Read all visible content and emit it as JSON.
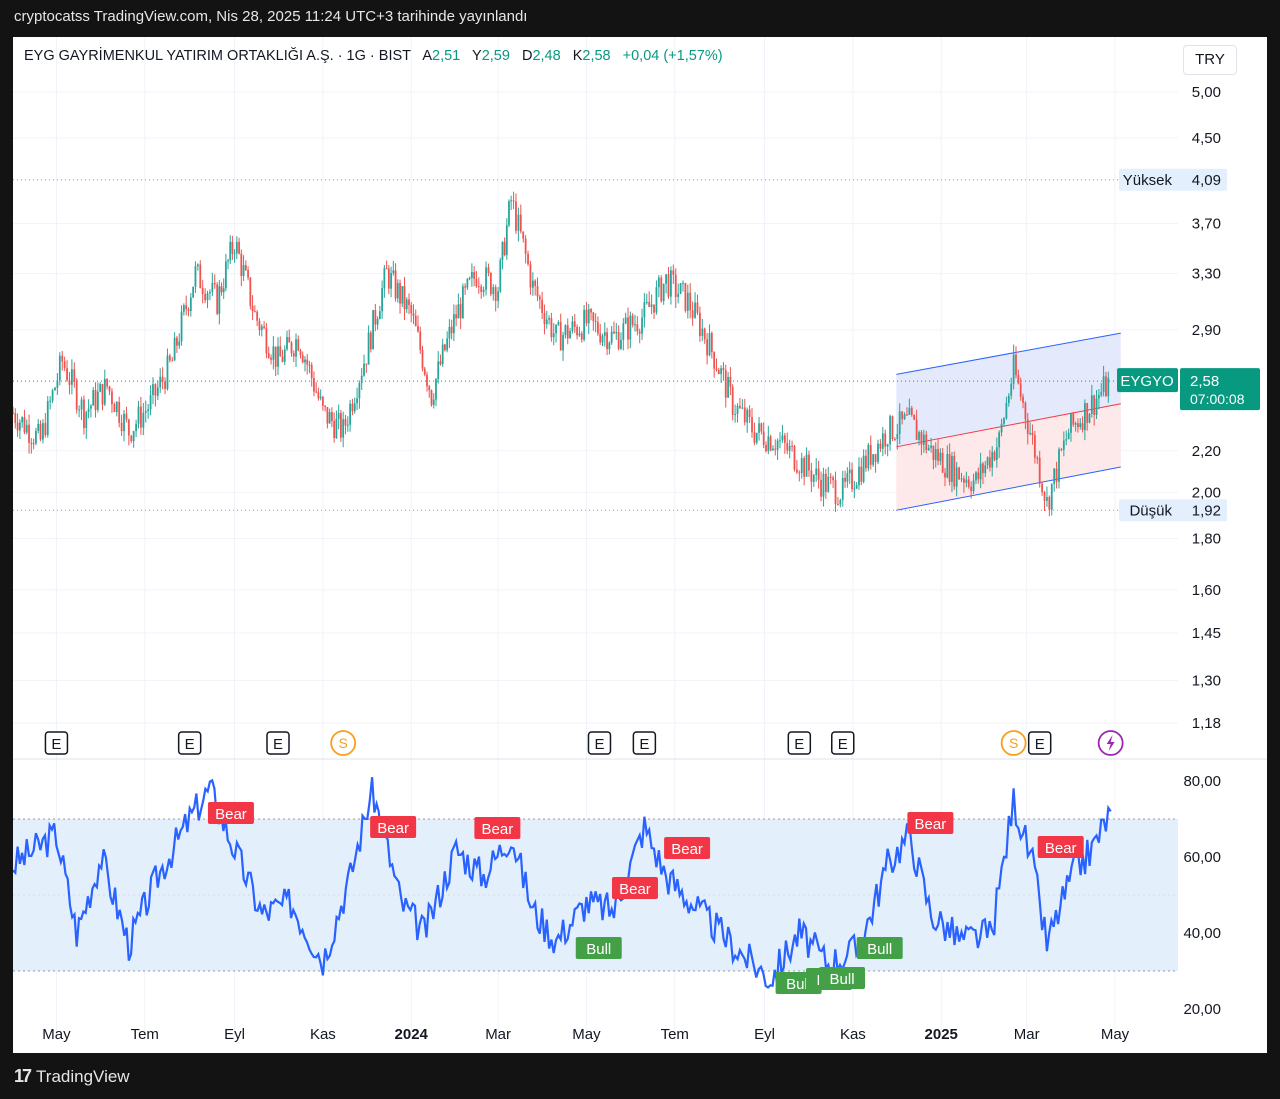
{
  "caption": "cryptocatss TradingView.com, Nis 28, 2025 11:24 UTC+3 tarihinde yayınlandı",
  "header": {
    "symbol_name": "EYG GAYRİMENKUL YATIRIM ORTAKLIĞI A.Ş. · 1G · BIST",
    "open_label": "A",
    "open_value": "2,51",
    "high_label": "Y",
    "high_value": "2,59",
    "low_label": "D",
    "low_value": "2,48",
    "close_label": "K",
    "close_value": "2,58",
    "change": "+0,04 (+1,57%)"
  },
  "currency": "TRY",
  "footer": {
    "brand": "TradingView",
    "mark": "17"
  },
  "colors": {
    "up": "#089981",
    "down": "#f23645",
    "rsi_line": "#2962ff",
    "rsi_band": "#e3f0fc",
    "channel_upper": "#dfe5fb",
    "channel_lower": "#fde4e6",
    "bear_label": "#f23645",
    "bull_label": "#43a047"
  },
  "chart_data": [
    {
      "type": "candlestick",
      "scale": "log",
      "y_ticks": [
        "5,00",
        "4,50",
        "3,70",
        "3,30",
        "2,90",
        "2,20",
        "2,00",
        "1,80",
        "1,60",
        "1,45",
        "1,30",
        "1,18"
      ],
      "y_tick_values": [
        5.0,
        4.5,
        3.7,
        3.3,
        2.9,
        2.2,
        2.0,
        1.8,
        1.6,
        1.45,
        1.3,
        1.18
      ],
      "x_ticks": [
        "May",
        "Tem",
        "Eyl",
        "Kas",
        "2024",
        "Mar",
        "May",
        "Tem",
        "Eyl",
        "Kas",
        "2025",
        "Mar",
        "May"
      ],
      "x_tick_dates": [
        "2023-05",
        "2023-07",
        "2023-09",
        "2023-11",
        "2024-01",
        "2024-03",
        "2024-05",
        "2024-07",
        "2024-09",
        "2024-11",
        "2025-01",
        "2025-03",
        "2025-05"
      ],
      "close_series": [
        {
          "date": "2023-04",
          "close": 2.4
        },
        {
          "date": "2023-04-20",
          "close": 2.25
        },
        {
          "date": "2023-05-05",
          "close": 2.7
        },
        {
          "date": "2023-05-20",
          "close": 2.4
        },
        {
          "date": "2023-06-05",
          "close": 2.55
        },
        {
          "date": "2023-06-20",
          "close": 2.3
        },
        {
          "date": "2023-07-05",
          "close": 2.45
        },
        {
          "date": "2023-07-20",
          "close": 2.7
        },
        {
          "date": "2023-08-05",
          "close": 3.3
        },
        {
          "date": "2023-08-20",
          "close": 3.1
        },
        {
          "date": "2023-09-01",
          "close": 3.55
        },
        {
          "date": "2023-09-15",
          "close": 3.0
        },
        {
          "date": "2023-10-01",
          "close": 2.7
        },
        {
          "date": "2023-10-15",
          "close": 2.85
        },
        {
          "date": "2023-11-01",
          "close": 2.4
        },
        {
          "date": "2023-11-15",
          "close": 2.3
        },
        {
          "date": "2023-12-01",
          "close": 2.75
        },
        {
          "date": "2023-12-15",
          "close": 3.3
        },
        {
          "date": "2024-01-01",
          "close": 3.0
        },
        {
          "date": "2024-01-15",
          "close": 2.5
        },
        {
          "date": "2024-02-01",
          "close": 3.0
        },
        {
          "date": "2024-02-15",
          "close": 3.3
        },
        {
          "date": "2024-03-01",
          "close": 3.2
        },
        {
          "date": "2024-03-10",
          "close": 3.9
        },
        {
          "date": "2024-03-25",
          "close": 3.2
        },
        {
          "date": "2024-04-10",
          "close": 2.85
        },
        {
          "date": "2024-05-01",
          "close": 2.95
        },
        {
          "date": "2024-05-20",
          "close": 2.85
        },
        {
          "date": "2024-06-10",
          "close": 3.0
        },
        {
          "date": "2024-06-25",
          "close": 3.25
        },
        {
          "date": "2024-07-10",
          "close": 3.1
        },
        {
          "date": "2024-07-25",
          "close": 2.8
        },
        {
          "date": "2024-08-10",
          "close": 2.45
        },
        {
          "date": "2024-08-25",
          "close": 2.3
        },
        {
          "date": "2024-09-10",
          "close": 2.25
        },
        {
          "date": "2024-09-25",
          "close": 2.15
        },
        {
          "date": "2024-10-10",
          "close": 2.05
        },
        {
          "date": "2024-10-25",
          "close": 2.0
        },
        {
          "date": "2024-11-10",
          "close": 2.15
        },
        {
          "date": "2024-11-25",
          "close": 2.3
        },
        {
          "date": "2024-12-10",
          "close": 2.35
        },
        {
          "date": "2024-12-25",
          "close": 2.2
        },
        {
          "date": "2025-01-10",
          "close": 2.1
        },
        {
          "date": "2025-01-25",
          "close": 2.05
        },
        {
          "date": "2025-02-10",
          "close": 2.25
        },
        {
          "date": "2025-02-20",
          "close": 2.65
        },
        {
          "date": "2025-03-05",
          "close": 2.25
        },
        {
          "date": "2025-03-15",
          "close": 1.95
        },
        {
          "date": "2025-03-30",
          "close": 2.3
        },
        {
          "date": "2025-04-15",
          "close": 2.45
        },
        {
          "date": "2025-04-28",
          "close": 2.58
        }
      ],
      "high_marker": {
        "label": "Yüksek",
        "value": "4,09"
      },
      "low_marker": {
        "label": "Düşük",
        "value": "1,92"
      },
      "last_price": {
        "ticker": "EYGYO",
        "value": "2,58",
        "countdown": "07:00:08"
      },
      "channel": {
        "start": "2024-12-01",
        "end": "2025-05-05",
        "upper": [
          2.62,
          2.88
        ],
        "mid": [
          2.22,
          2.45
        ],
        "lower": [
          1.92,
          2.12
        ]
      },
      "events": [
        {
          "date": "2023-05",
          "kind": "E"
        },
        {
          "date": "2023-08",
          "kind": "E"
        },
        {
          "date": "2023-10",
          "kind": "E"
        },
        {
          "date": "2023-11-15",
          "kind": "S"
        },
        {
          "date": "2024-05-10",
          "kind": "E"
        },
        {
          "date": "2024-06-10",
          "kind": "E"
        },
        {
          "date": "2024-09-25",
          "kind": "E"
        },
        {
          "date": "2024-10-25",
          "kind": "E"
        },
        {
          "date": "2025-02-20",
          "kind": "S"
        },
        {
          "date": "2025-03-10",
          "kind": "E"
        },
        {
          "date": "2025-04-28",
          "kind": "bolt"
        }
      ]
    },
    {
      "type": "line",
      "y_ticks": [
        "80,00",
        "60,00",
        "40,00",
        "20,00"
      ],
      "y_tick_values": [
        80,
        60,
        40,
        20
      ],
      "band": [
        30,
        70
      ],
      "rsi": [
        {
          "date": "2023-04",
          "v": 58
        },
        {
          "date": "2023-05-01",
          "v": 66
        },
        {
          "date": "2023-05-15",
          "v": 40
        },
        {
          "date": "2023-06-01",
          "v": 60
        },
        {
          "date": "2023-06-20",
          "v": 37
        },
        {
          "date": "2023-07-10",
          "v": 55
        },
        {
          "date": "2023-08-01",
          "v": 70
        },
        {
          "date": "2023-08-15",
          "v": 78
        },
        {
          "date": "2023-09-01",
          "v": 62
        },
        {
          "date": "2023-09-20",
          "v": 45
        },
        {
          "date": "2023-10-10",
          "v": 48
        },
        {
          "date": "2023-11-01",
          "v": 33
        },
        {
          "date": "2023-11-20",
          "v": 55
        },
        {
          "date": "2023-12-05",
          "v": 78
        },
        {
          "date": "2023-12-25",
          "v": 48
        },
        {
          "date": "2024-01-10",
          "v": 40
        },
        {
          "date": "2024-02-01",
          "v": 62
        },
        {
          "date": "2024-02-20",
          "v": 55
        },
        {
          "date": "2024-03-10",
          "v": 66
        },
        {
          "date": "2024-03-25",
          "v": 46
        },
        {
          "date": "2024-04-10",
          "v": 38
        },
        {
          "date": "2024-05-01",
          "v": 48
        },
        {
          "date": "2024-05-20",
          "v": 46
        },
        {
          "date": "2024-06-10",
          "v": 68
        },
        {
          "date": "2024-06-25",
          "v": 55
        },
        {
          "date": "2024-07-20",
          "v": 45
        },
        {
          "date": "2024-08-15",
          "v": 35
        },
        {
          "date": "2024-09-05",
          "v": 28
        },
        {
          "date": "2024-09-25",
          "v": 40
        },
        {
          "date": "2024-10-15",
          "v": 32
        },
        {
          "date": "2024-11-05",
          "v": 36
        },
        {
          "date": "2024-11-25",
          "v": 58
        },
        {
          "date": "2024-12-10",
          "v": 66
        },
        {
          "date": "2024-12-25",
          "v": 45
        },
        {
          "date": "2025-01-15",
          "v": 38
        },
        {
          "date": "2025-02-05",
          "v": 40
        },
        {
          "date": "2025-02-20",
          "v": 75
        },
        {
          "date": "2025-03-05",
          "v": 58
        },
        {
          "date": "2025-03-15",
          "v": 37
        },
        {
          "date": "2025-04-01",
          "v": 55
        },
        {
          "date": "2025-04-15",
          "v": 62
        },
        {
          "date": "2025-04-28",
          "v": 72
        }
      ],
      "signals": [
        {
          "date": "2023-08-15",
          "label": "Bear",
          "kind": "bear"
        },
        {
          "date": "2023-12-05",
          "label": "Bear",
          "kind": "bear"
        },
        {
          "date": "2024-02-15",
          "label": "Bear",
          "kind": "bear"
        },
        {
          "date": "2024-05-20",
          "label": "Bear",
          "kind": "bear"
        },
        {
          "date": "2024-06-25",
          "label": "Bear",
          "kind": "bear"
        },
        {
          "date": "2024-04-25",
          "label": "Bull",
          "kind": "bull"
        },
        {
          "date": "2024-09-10",
          "label": "Bull",
          "kind": "bull"
        },
        {
          "date": "2024-10-01",
          "label": "Bull",
          "kind": "bull"
        },
        {
          "date": "2024-10-10",
          "label": "Bull",
          "kind": "bull"
        },
        {
          "date": "2024-11-05",
          "label": "Bull",
          "kind": "bull"
        },
        {
          "date": "2024-12-10",
          "label": "Bear",
          "kind": "bear"
        },
        {
          "date": "2025-03-10",
          "label": "Bear",
          "kind": "bear"
        }
      ]
    }
  ]
}
